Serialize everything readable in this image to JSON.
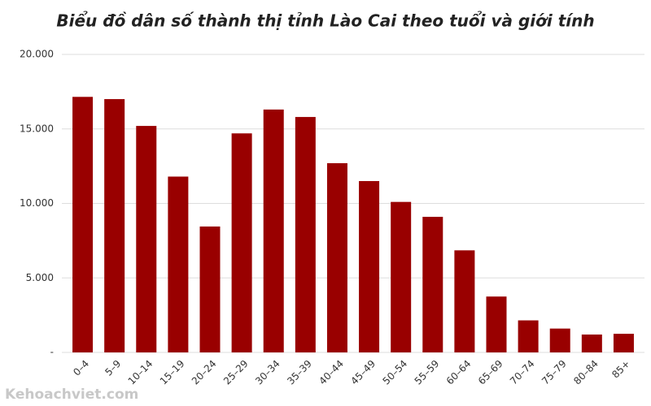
{
  "chart_data": {
    "type": "bar",
    "title": "Biểu đồ dân số thành thị tỉnh Lào Cai theo tuổi và giới tính",
    "categories": [
      "0–4",
      "5–9",
      "10–14",
      "15–19",
      "20–24",
      "25–29",
      "30–34",
      "35–39",
      "40–44",
      "45–49",
      "50–54",
      "55–59",
      "60–64",
      "65–69",
      "70–74",
      "75–79",
      "80–84",
      "85+"
    ],
    "values": [
      17150,
      17000,
      15200,
      11800,
      8450,
      14700,
      16300,
      15800,
      12700,
      11500,
      10100,
      9100,
      6850,
      3750,
      2150,
      1600,
      1200,
      1250
    ],
    "color": "#990000",
    "ylim": [
      0,
      20000
    ],
    "yticks": [
      {
        "value": 0,
        "label": "-"
      },
      {
        "value": 5000,
        "label": "5.000"
      },
      {
        "value": 10000,
        "label": "10.000"
      },
      {
        "value": 15000,
        "label": "15.000"
      },
      {
        "value": 20000,
        "label": "20.000"
      }
    ],
    "grid": true,
    "watermark": "Kehoachviet.com"
  }
}
